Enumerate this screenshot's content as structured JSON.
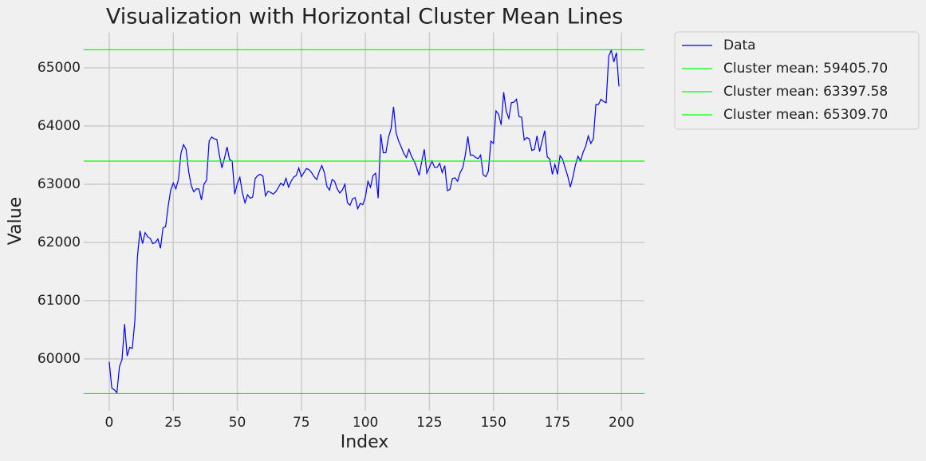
{
  "chart_data": {
    "type": "line",
    "title": "Visualization with Horizontal Cluster Mean Lines",
    "xlabel": "Index",
    "ylabel": "Value",
    "x": [
      0,
      1,
      2,
      3,
      4,
      5,
      6,
      7,
      8,
      9,
      10,
      11,
      12,
      13,
      14,
      15,
      16,
      17,
      18,
      19,
      20,
      21,
      22,
      23,
      24,
      25,
      26,
      27,
      28,
      29,
      30,
      31,
      32,
      33,
      34,
      35,
      36,
      37,
      38,
      39,
      40,
      41,
      42,
      43,
      44,
      45,
      46,
      47,
      48,
      49,
      50,
      51,
      52,
      53,
      54,
      55,
      56,
      57,
      58,
      59,
      60,
      61,
      62,
      63,
      64,
      65,
      66,
      67,
      68,
      69,
      70,
      71,
      72,
      73,
      74,
      75,
      76,
      77,
      78,
      79,
      80,
      81,
      82,
      83,
      84,
      85,
      86,
      87,
      88,
      89,
      90,
      91,
      92,
      93,
      94,
      95,
      96,
      97,
      98,
      99,
      100,
      101,
      102,
      103,
      104,
      105,
      106,
      107,
      108,
      109,
      110,
      111,
      112,
      113,
      114,
      115,
      116,
      117,
      118,
      119,
      120,
      121,
      122,
      123,
      124,
      125,
      126,
      127,
      128,
      129,
      130,
      131,
      132,
      133,
      134,
      135,
      136,
      137,
      138,
      139,
      140,
      141,
      142,
      143,
      144,
      145,
      146,
      147,
      148,
      149,
      150,
      151,
      152,
      153,
      154,
      155,
      156,
      157,
      158,
      159,
      160,
      161,
      162,
      163,
      164,
      165,
      166,
      167,
      168,
      169,
      170,
      171,
      172,
      173,
      174,
      175,
      176,
      177,
      178,
      179,
      180,
      181,
      182,
      183,
      184,
      185,
      186,
      187,
      188,
      189,
      190,
      191,
      192,
      193,
      194,
      195,
      196,
      197,
      198,
      199
    ],
    "series": [
      {
        "name": "Data",
        "color": "#0000ff",
        "values": [
          59950,
          59500,
          59470,
          59420,
          59870,
          59990,
          60600,
          60050,
          60200,
          60180,
          60650,
          61750,
          62200,
          61980,
          62170,
          62100,
          62070,
          61980,
          62000,
          62060,
          61900,
          62250,
          62270,
          62620,
          62900,
          63020,
          62920,
          63080,
          63530,
          63680,
          63600,
          63220,
          62980,
          62870,
          62920,
          62920,
          62730,
          63000,
          63070,
          63740,
          63810,
          63780,
          63770,
          63500,
          63280,
          63450,
          63640,
          63420,
          63400,
          62830,
          63010,
          63120,
          62850,
          62680,
          62820,
          62760,
          62780,
          63100,
          63150,
          63170,
          63140,
          62800,
          62880,
          62860,
          62830,
          62870,
          62940,
          63020,
          62980,
          63100,
          62950,
          63050,
          63120,
          63150,
          63280,
          63130,
          63200,
          63270,
          63250,
          63200,
          63130,
          63080,
          63220,
          63320,
          63200,
          62960,
          62900,
          63080,
          63050,
          62920,
          62850,
          62900,
          63000,
          62680,
          62640,
          62750,
          62770,
          62580,
          62670,
          62650,
          62780,
          63050,
          62950,
          63150,
          63190,
          62760,
          63860,
          63540,
          63540,
          63800,
          63950,
          64330,
          63880,
          63740,
          63640,
          63530,
          63460,
          63600,
          63480,
          63400,
          63290,
          63150,
          63390,
          63600,
          63190,
          63290,
          63400,
          63290,
          63290,
          63360,
          63200,
          63320,
          62890,
          62910,
          63100,
          63110,
          63050,
          63200,
          63280,
          63500,
          63820,
          63500,
          63500,
          63460,
          63440,
          63500,
          63160,
          63130,
          63220,
          63740,
          63700,
          64260,
          64200,
          64020,
          64580,
          64250,
          64130,
          64400,
          64410,
          64460,
          64160,
          64150,
          63760,
          63800,
          63780,
          63580,
          63600,
          63830,
          63560,
          63740,
          63920,
          63470,
          63430,
          63170,
          63340,
          63170,
          63490,
          63430,
          63280,
          63140,
          62950,
          63120,
          63330,
          63480,
          63400,
          63550,
          63650,
          63830,
          63700,
          63780,
          64370,
          64370,
          64460,
          64420,
          64400,
          65200,
          65300,
          65100,
          65260,
          64680
        ]
      }
    ],
    "hlines": [
      {
        "name": "Cluster mean: 59405.70",
        "value": 59405.7,
        "color": "#00ff00"
      },
      {
        "name": "Cluster mean: 63397.58",
        "value": 63397.58,
        "color": "#00ff00"
      },
      {
        "name": "Cluster mean: 65309.70",
        "value": 65309.7,
        "color": "#00ff00"
      }
    ],
    "xlim": [
      -9.95,
      208.95
    ],
    "ylim": [
      59110.5,
      65604.9
    ],
    "xticks": [
      0,
      25,
      50,
      75,
      100,
      125,
      150,
      175,
      200
    ],
    "yticks": [
      60000,
      61000,
      62000,
      63000,
      64000,
      65000
    ],
    "grid": true,
    "legend": "outside upper right"
  }
}
